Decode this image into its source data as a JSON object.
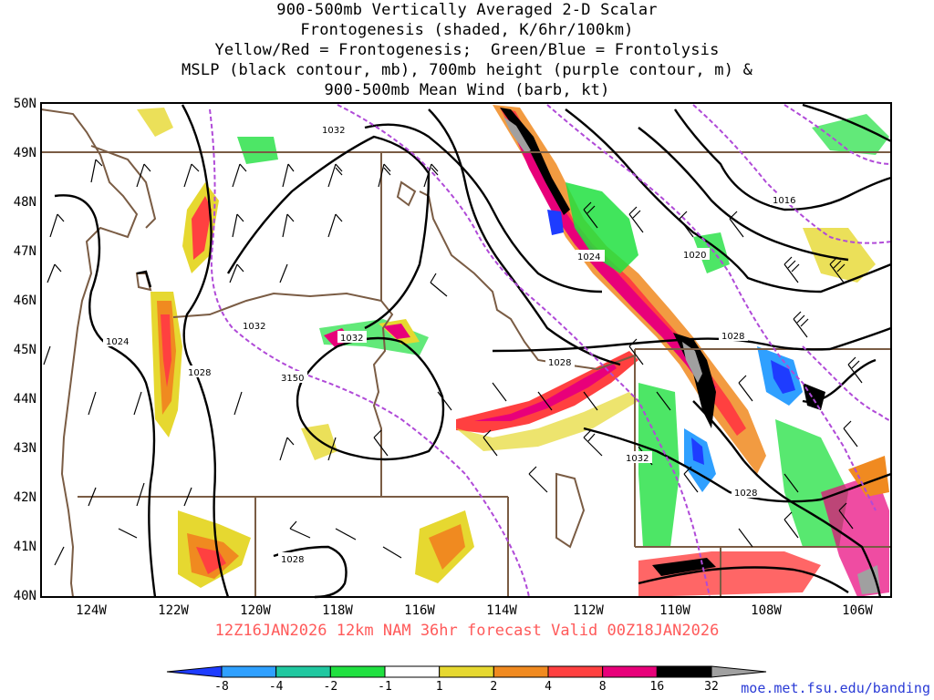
{
  "title_lines": [
    "900-500mb Vertically Averaged 2-D Scalar",
    "Frontogenesis (shaded, K/6hr/100km)",
    "Yellow/Red = Frontogenesis;  Green/Blue = Frontolysis",
    "MSLP (black contour, mb), 700mb height (purple contour, m) &",
    "900-500mb Mean Wind (barb, kt)"
  ],
  "x_ticks": [
    "124W",
    "122W",
    "120W",
    "118W",
    "116W",
    "114W",
    "112W",
    "110W",
    "108W",
    "106W"
  ],
  "y_ticks": [
    "50N",
    "49N",
    "48N",
    "47N",
    "46N",
    "45N",
    "44N",
    "43N",
    "42N",
    "41N",
    "40N"
  ],
  "valid_line": "12Z16JAN2026 12km NAM 36hr forecast Valid 00Z18JAN2026",
  "credit": "moe.met.fsu.edu/banding",
  "colorbar": {
    "labels": [
      "-8",
      "-4",
      "-2",
      "-1",
      "1",
      "2",
      "4",
      "8",
      "16",
      "32"
    ],
    "colors": [
      "#1e3cff",
      "#2fa0ff",
      "#20c8a0",
      "#20e040",
      "#ffffff",
      "#e6d830",
      "#f08a20",
      "#ff4040",
      "#e8007a",
      "#000000",
      "#a0a0a0"
    ]
  },
  "contour_labels": {
    "mslp": [
      "1032",
      "1024",
      "1020",
      "1016",
      "1028",
      "1032",
      "1024",
      "1028",
      "1032",
      "1028",
      "1028",
      "1028",
      "1032"
    ],
    "height": [
      "3150"
    ]
  }
}
